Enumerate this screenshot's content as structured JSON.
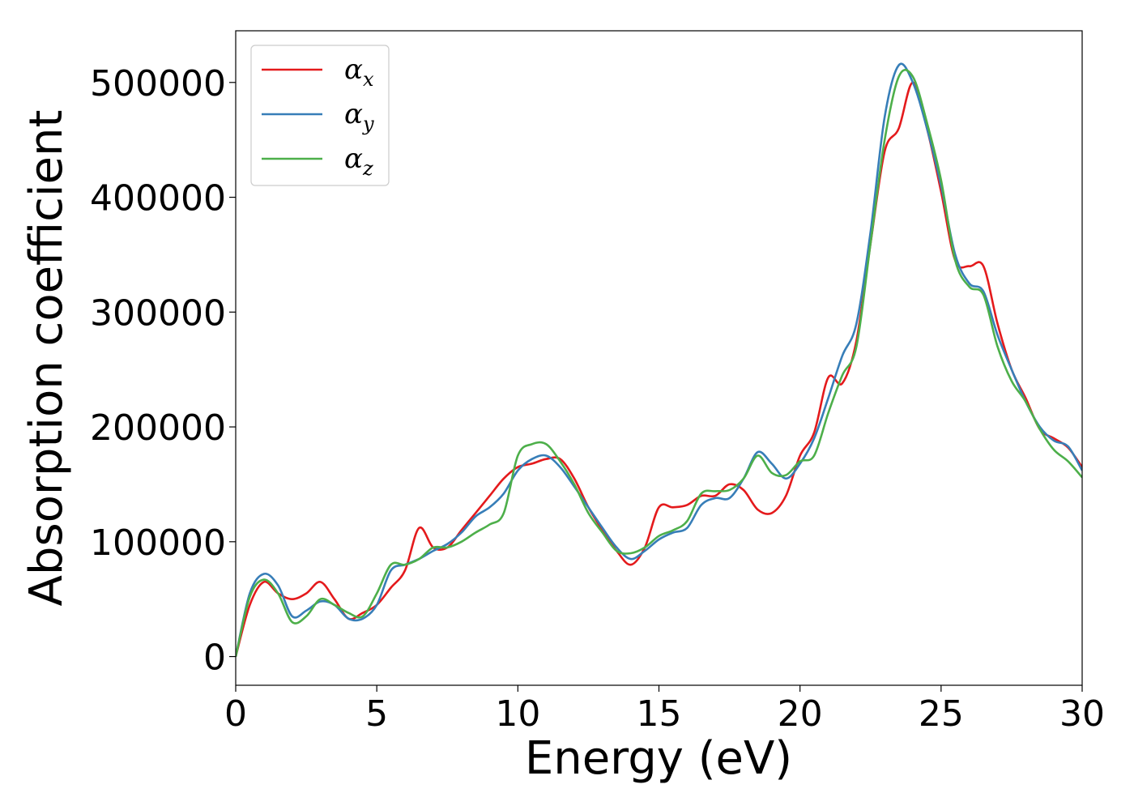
{
  "chart_data": {
    "type": "line",
    "title": "",
    "xlabel": "Energy (eV)",
    "ylabel": "Absorption coefficient",
    "xlim": [
      0,
      30
    ],
    "ylim": [
      -25000,
      545000
    ],
    "xticks": [
      "0",
      "5",
      "10",
      "15",
      "20",
      "25",
      "30"
    ],
    "yticks": [
      "0",
      "100000",
      "200000",
      "300000",
      "400000",
      "500000"
    ],
    "grid": false,
    "legend_position": "top-left",
    "x": [
      0,
      0.5,
      1,
      1.5,
      2,
      2.5,
      3,
      3.5,
      4,
      4.5,
      5,
      5.5,
      6,
      6.5,
      7,
      7.5,
      8,
      8.5,
      9,
      9.5,
      10,
      10.5,
      11,
      11.5,
      12,
      12.5,
      13,
      13.5,
      14,
      14.5,
      15,
      15.5,
      16,
      16.5,
      17,
      17.5,
      18,
      18.5,
      19,
      19.5,
      20,
      20.5,
      21,
      21.5,
      22,
      22.5,
      23,
      23.5,
      24,
      24.5,
      25,
      25.5,
      26,
      26.5,
      27,
      27.5,
      28,
      28.5,
      29,
      29.5,
      30
    ],
    "series": [
      {
        "name": "αx",
        "color": "#e41a1c",
        "values": [
          0,
          45000,
          65000,
          55000,
          50000,
          55000,
          65000,
          50000,
          33000,
          38000,
          45000,
          60000,
          75000,
          112000,
          95000,
          95000,
          110000,
          125000,
          140000,
          155000,
          165000,
          168000,
          172000,
          172000,
          155000,
          130000,
          110000,
          92000,
          80000,
          95000,
          130000,
          130000,
          132000,
          140000,
          140000,
          150000,
          145000,
          128000,
          125000,
          140000,
          175000,
          195000,
          243000,
          238000,
          275000,
          360000,
          440000,
          460000,
          500000,
          460000,
          405000,
          345000,
          340000,
          340000,
          290000,
          250000,
          225000,
          198000,
          190000,
          182000,
          165000
        ]
      },
      {
        "name": "αy",
        "color": "#377eb8",
        "values": [
          0,
          55000,
          72000,
          62000,
          35000,
          40000,
          48000,
          45000,
          33000,
          33000,
          45000,
          75000,
          80000,
          85000,
          92000,
          98000,
          108000,
          122000,
          130000,
          142000,
          162000,
          172000,
          175000,
          165000,
          148000,
          130000,
          112000,
          95000,
          85000,
          92000,
          102000,
          108000,
          112000,
          132000,
          138000,
          138000,
          155000,
          178000,
          168000,
          155000,
          168000,
          190000,
          225000,
          262000,
          290000,
          370000,
          470000,
          515000,
          500000,
          460000,
          410000,
          350000,
          325000,
          318000,
          280000,
          250000,
          222000,
          200000,
          188000,
          183000,
          162000
        ]
      },
      {
        "name": "αz",
        "color": "#4daf4a",
        "values": [
          0,
          52000,
          67000,
          55000,
          30000,
          35000,
          50000,
          45000,
          38000,
          35000,
          55000,
          80000,
          80000,
          85000,
          95000,
          95000,
          100000,
          108000,
          115000,
          125000,
          175000,
          185000,
          185000,
          170000,
          150000,
          125000,
          108000,
          92000,
          90000,
          95000,
          105000,
          110000,
          118000,
          142000,
          144000,
          145000,
          155000,
          175000,
          160000,
          158000,
          170000,
          175000,
          212000,
          245000,
          270000,
          360000,
          450000,
          505000,
          505000,
          465000,
          415000,
          345000,
          322000,
          315000,
          270000,
          240000,
          222000,
          198000,
          180000,
          170000,
          156000
        ]
      }
    ]
  },
  "legend": {
    "items": [
      {
        "base": "α",
        "sub": "x"
      },
      {
        "base": "α",
        "sub": "y"
      },
      {
        "base": "α",
        "sub": "z"
      }
    ]
  }
}
